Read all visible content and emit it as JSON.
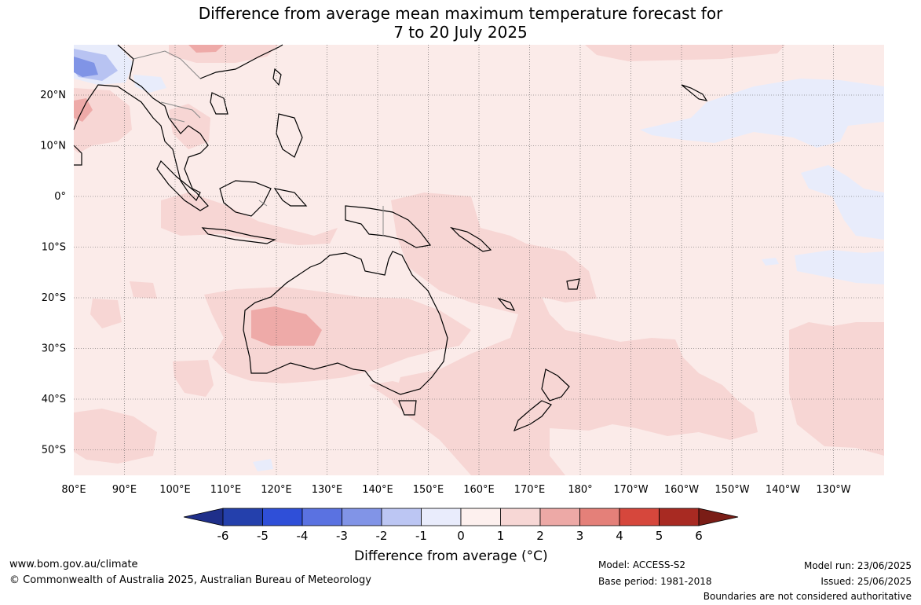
{
  "title": {
    "line1": "Difference from average mean maximum temperature forecast for",
    "line2": "7 to 20 July 2025"
  },
  "map": {
    "lon_labels": [
      "80°E",
      "90°E",
      "100°E",
      "110°E",
      "120°E",
      "130°E",
      "140°E",
      "150°E",
      "160°E",
      "170°E",
      "180°",
      "170°W",
      "160°W",
      "150°W",
      "140°W",
      "130°W"
    ],
    "lat_labels": [
      "20°N",
      "10°N",
      "0°",
      "10°S",
      "20°S",
      "30°S",
      "40°S",
      "50°S"
    ],
    "colors": {
      "base": "#fbebe9",
      "light_red": "#f7d6d4",
      "mid_red": "#eeaaa8",
      "light_blue": "#e8ecfb",
      "blue_mid": "#b8c3f2",
      "blue_dark": "#8094e6",
      "coast": "#000000",
      "border": "#888888"
    }
  },
  "colorbar": {
    "tick_labels": [
      "-6",
      "-5",
      "-4",
      "-3",
      "-2",
      "-1",
      "0",
      "1",
      "2",
      "3",
      "4",
      "5",
      "6"
    ],
    "colors": [
      "#1f2f8a",
      "#2440ac",
      "#2f4fd8",
      "#5a72e1",
      "#8194e7",
      "#bcc6f3",
      "#e9ecfc",
      "#fdf0ee",
      "#f7d7d5",
      "#eda9a6",
      "#e48079",
      "#d6473c",
      "#a82a22",
      "#7a1d16"
    ],
    "label": "Difference from average (°C)"
  },
  "footer": {
    "website": "www.bom.gov.au/climate",
    "copyright": "© Commonwealth of Australia 2025, Australian Bureau of Meteorology",
    "model": "Model: ACCESS-S2",
    "base_period": "Base period: 1981-2018",
    "model_run": "Model run: 23/06/2025",
    "issued": "Issued: 25/06/2025",
    "disclaimer": "Boundaries are not considered authoritative"
  }
}
